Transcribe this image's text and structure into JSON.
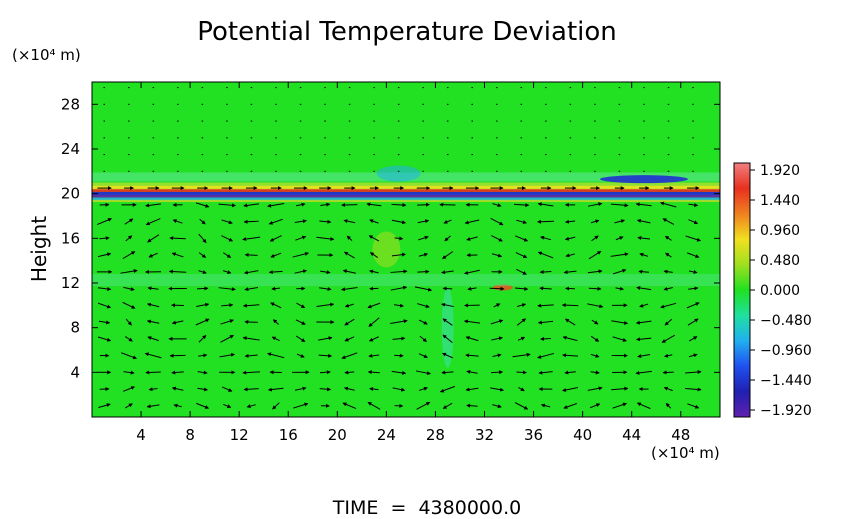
{
  "chart_data": {
    "type": "heatmap",
    "title": "Potential Temperature Deviation",
    "ylabel": "Height",
    "xunit": "(×10⁴ m)",
    "yunit": "(×10⁴ m)",
    "x_ticks": [
      4,
      8,
      12,
      16,
      20,
      24,
      28,
      32,
      36,
      40,
      44,
      48
    ],
    "y_ticks": [
      4,
      8,
      12,
      16,
      20,
      24,
      28
    ],
    "xlim": [
      0,
      51.2
    ],
    "ylim": [
      0,
      30
    ],
    "colorbar": {
      "ticks": [
        "1.920",
        "1.440",
        "0.960",
        "0.480",
        "0.000",
        "−0.480",
        "−0.960",
        "−1.440",
        "−1.920"
      ],
      "range": [
        -1.92,
        1.92
      ],
      "colors": [
        "#f08080",
        "#e83020",
        "#f08020",
        "#f0e020",
        "#a0e020",
        "#20e020",
        "#20e0a0",
        "#20b0f0",
        "#2050f0",
        "#2020b0",
        "#6020b0"
      ]
    },
    "background_value": 0.0,
    "overlay": "wind vector arrows",
    "footer": "TIME  =  4380000.0"
  }
}
